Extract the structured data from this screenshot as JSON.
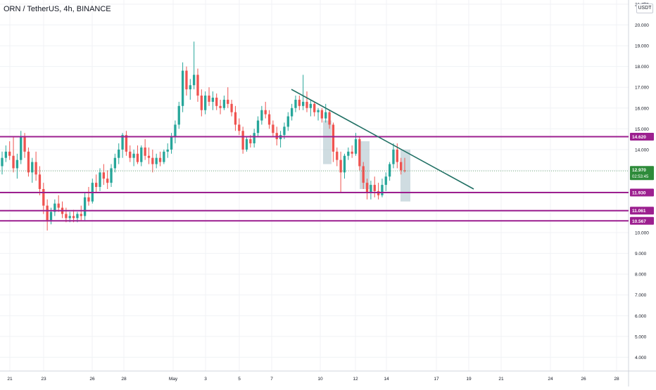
{
  "header": {
    "symbol_title": "ORN / TetherUS, 4h, BINANCE",
    "currency_button": "USDT"
  },
  "colors": {
    "up": "#26a69a",
    "down": "#ef5350",
    "level": "#9c1f8f",
    "trendline": "#1f6f63",
    "grid": "#f0f2f5",
    "current_price": "#2e8b3a"
  },
  "current_price": {
    "value": "12.970",
    "countdown": "02:53:45"
  },
  "chart_data": {
    "type": "candlestick",
    "title": "ORN / TetherUS, 4h, BINANCE",
    "y_axis": {
      "ticks": [
        "21.000",
        "20.000",
        "19.000",
        "18.000",
        "17.000",
        "16.000",
        "15.000",
        "14.000",
        "13.000",
        "12.000",
        "11.000",
        "10.000",
        "9.000",
        "8.000",
        "7.000",
        "6.000",
        "5.000",
        "4.000"
      ],
      "ylim": [
        3.7,
        21.1
      ]
    },
    "x_axis": {
      "ticks": [
        "21",
        "23",
        "26",
        "28",
        "May",
        "3",
        "5",
        "7",
        "10",
        "12",
        "14",
        "17",
        "19",
        "21",
        "24",
        "26",
        "28"
      ]
    },
    "levels": [
      {
        "name": "resistance",
        "value": 14.62,
        "label": "14.620"
      },
      {
        "name": "support-1",
        "value": 11.93,
        "label": "11.930"
      },
      {
        "name": "support-2",
        "value": 11.061,
        "label": "11.061"
      },
      {
        "name": "support-3",
        "value": 10.567,
        "label": "10.567"
      }
    ],
    "trendline": {
      "start": {
        "date": "May 8",
        "value": 16.9
      },
      "end": {
        "date": "May 19",
        "value": 12.1
      }
    },
    "candles": [
      [
        13.2,
        13.9,
        12.8,
        13.6
      ],
      [
        13.6,
        14.2,
        13.4,
        13.9
      ],
      [
        13.9,
        14.4,
        13.5,
        13.7
      ],
      [
        13.7,
        14.6,
        12.9,
        13.1
      ],
      [
        13.1,
        13.8,
        12.6,
        13.5
      ],
      [
        13.5,
        14.9,
        13.3,
        14.6
      ],
      [
        14.6,
        14.8,
        13.6,
        13.9
      ],
      [
        13.9,
        14.1,
        12.7,
        12.9
      ],
      [
        12.9,
        13.6,
        12.4,
        13.4
      ],
      [
        13.4,
        13.9,
        12.5,
        12.8
      ],
      [
        12.8,
        13.2,
        11.8,
        12.1
      ],
      [
        12.1,
        12.4,
        10.9,
        11.3
      ],
      [
        11.3,
        11.6,
        10.1,
        10.6
      ],
      [
        10.6,
        11.2,
        10.4,
        11.0
      ],
      [
        11.0,
        11.6,
        10.8,
        11.4
      ],
      [
        11.4,
        11.8,
        11.0,
        11.2
      ],
      [
        11.2,
        11.5,
        10.7,
        10.9
      ],
      [
        10.9,
        11.2,
        10.5,
        10.7
      ],
      [
        10.7,
        11.0,
        10.5,
        10.8
      ],
      [
        10.8,
        11.1,
        10.5,
        10.7
      ],
      [
        10.7,
        11.0,
        10.5,
        10.9
      ],
      [
        10.9,
        11.3,
        10.6,
        10.8
      ],
      [
        10.8,
        11.9,
        10.6,
        11.7
      ],
      [
        11.7,
        12.2,
        11.3,
        11.5
      ],
      [
        11.5,
        12.6,
        11.4,
        12.4
      ],
      [
        12.4,
        12.8,
        11.9,
        12.2
      ],
      [
        12.2,
        13.1,
        12.0,
        12.9
      ],
      [
        12.9,
        13.3,
        12.3,
        12.6
      ],
      [
        12.6,
        13.0,
        12.1,
        12.4
      ],
      [
        12.4,
        13.3,
        12.2,
        13.1
      ],
      [
        13.1,
        13.8,
        12.9,
        13.6
      ],
      [
        13.6,
        14.3,
        13.3,
        14.0
      ],
      [
        14.0,
        14.8,
        13.6,
        14.7
      ],
      [
        14.7,
        14.9,
        13.7,
        13.9
      ],
      [
        13.9,
        14.2,
        13.4,
        13.6
      ],
      [
        13.6,
        14.0,
        13.2,
        13.8
      ],
      [
        13.8,
        14.2,
        13.3,
        13.4
      ],
      [
        13.4,
        14.2,
        13.2,
        14.1
      ],
      [
        14.1,
        14.5,
        13.5,
        13.7
      ],
      [
        13.7,
        14.1,
        13.3,
        13.6
      ],
      [
        13.6,
        14.0,
        12.9,
        13.3
      ],
      [
        13.3,
        13.8,
        13.1,
        13.6
      ],
      [
        13.6,
        13.9,
        13.2,
        13.4
      ],
      [
        13.4,
        14.0,
        13.3,
        13.9
      ],
      [
        13.9,
        14.3,
        13.6,
        14.0
      ],
      [
        14.0,
        14.8,
        13.8,
        14.6
      ],
      [
        14.6,
        15.4,
        14.3,
        15.2
      ],
      [
        15.2,
        16.3,
        15.0,
        16.1
      ],
      [
        16.1,
        18.2,
        15.8,
        17.8
      ],
      [
        17.8,
        18.0,
        16.6,
        16.9
      ],
      [
        16.9,
        17.4,
        16.4,
        17.1
      ],
      [
        17.1,
        19.2,
        16.9,
        17.6
      ],
      [
        17.6,
        17.9,
        16.3,
        16.6
      ],
      [
        16.6,
        16.9,
        15.6,
        15.9
      ],
      [
        15.9,
        16.8,
        15.7,
        16.6
      ],
      [
        16.6,
        17.0,
        16.1,
        16.3
      ],
      [
        16.3,
        16.8,
        15.9,
        16.5
      ],
      [
        16.5,
        16.7,
        15.9,
        16.1
      ],
      [
        16.1,
        16.4,
        15.7,
        16.0
      ],
      [
        16.0,
        16.6,
        15.9,
        16.4
      ],
      [
        16.4,
        17.0,
        16.0,
        16.2
      ],
      [
        16.2,
        16.4,
        15.6,
        15.8
      ],
      [
        15.8,
        16.1,
        14.9,
        15.2
      ],
      [
        15.2,
        15.5,
        14.7,
        14.9
      ],
      [
        14.9,
        15.1,
        13.8,
        14.0
      ],
      [
        14.0,
        14.6,
        13.9,
        14.5
      ],
      [
        14.5,
        14.7,
        14.1,
        14.3
      ],
      [
        14.3,
        15.0,
        14.1,
        14.8
      ],
      [
        14.8,
        15.6,
        14.6,
        15.4
      ],
      [
        15.4,
        16.1,
        15.2,
        15.9
      ],
      [
        15.9,
        16.3,
        15.5,
        15.7
      ],
      [
        15.7,
        15.9,
        15.0,
        15.2
      ],
      [
        15.2,
        15.4,
        14.6,
        14.8
      ],
      [
        14.8,
        15.1,
        14.2,
        14.5
      ],
      [
        14.5,
        14.9,
        14.1,
        14.7
      ],
      [
        14.7,
        15.3,
        14.5,
        15.1
      ],
      [
        15.1,
        15.8,
        14.9,
        15.6
      ],
      [
        15.6,
        16.2,
        15.4,
        16.0
      ],
      [
        16.0,
        16.6,
        15.8,
        16.4
      ],
      [
        16.4,
        16.6,
        15.9,
        16.1
      ],
      [
        16.1,
        17.6,
        15.9,
        16.3
      ],
      [
        16.3,
        16.8,
        15.8,
        16.0
      ],
      [
        16.0,
        16.4,
        15.6,
        16.2
      ],
      [
        16.2,
        16.3,
        15.6,
        15.8
      ],
      [
        15.8,
        16.0,
        15.4,
        15.9
      ],
      [
        15.9,
        16.0,
        15.3,
        15.5
      ],
      [
        15.5,
        16.2,
        15.3,
        15.8
      ],
      [
        15.8,
        15.9,
        15.0,
        15.2
      ],
      [
        15.2,
        15.3,
        13.4,
        13.9
      ],
      [
        13.9,
        14.1,
        13.2,
        13.5
      ],
      [
        13.5,
        13.9,
        11.9,
        12.9
      ],
      [
        12.9,
        13.8,
        12.6,
        13.7
      ],
      [
        13.7,
        14.1,
        13.5,
        13.9
      ],
      [
        13.9,
        14.2,
        13.6,
        13.8
      ],
      [
        13.8,
        14.8,
        13.7,
        14.5
      ],
      [
        14.5,
        14.6,
        13.0,
        13.2
      ],
      [
        13.2,
        13.4,
        12.1,
        12.4
      ],
      [
        12.4,
        12.6,
        11.6,
        11.9
      ],
      [
        11.9,
        12.5,
        11.6,
        12.3
      ],
      [
        12.3,
        12.7,
        11.7,
        12.0
      ],
      [
        12.0,
        12.4,
        11.6,
        11.8
      ],
      [
        11.8,
        12.6,
        11.7,
        12.3
      ],
      [
        12.3,
        12.9,
        12.0,
        12.7
      ],
      [
        12.7,
        13.4,
        12.5,
        13.3
      ],
      [
        13.3,
        14.3,
        13.1,
        14.0
      ],
      [
        14.0,
        14.3,
        13.1,
        13.4
      ],
      [
        13.4,
        13.6,
        12.8,
        13.0
      ],
      [
        13.0,
        13.6,
        12.9,
        12.97
      ]
    ]
  }
}
